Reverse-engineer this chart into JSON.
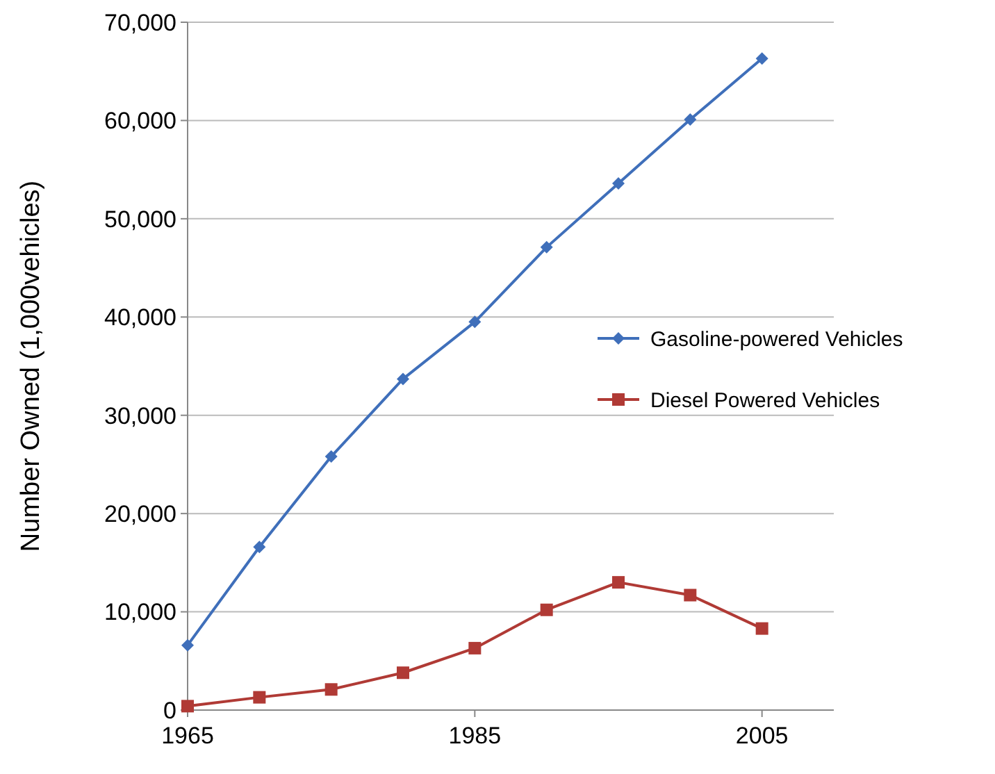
{
  "chart_data": {
    "type": "line",
    "ylabel": "Number Owned (1,000vehicles)",
    "x": [
      1965,
      1970,
      1975,
      1980,
      1985,
      1990,
      1995,
      2000,
      2005
    ],
    "xlim": [
      1965,
      2010
    ],
    "xticks": [
      1965,
      1985,
      2005
    ],
    "ylim": [
      0,
      70000
    ],
    "yticks": [
      {
        "value": 0,
        "label": "0"
      },
      {
        "value": 10000,
        "label": "10,000"
      },
      {
        "value": 20000,
        "label": "20,000"
      },
      {
        "value": 30000,
        "label": "30,000"
      },
      {
        "value": 40000,
        "label": "40,000"
      },
      {
        "value": 50000,
        "label": "50,000"
      },
      {
        "value": 60000,
        "label": "60,000"
      },
      {
        "value": 70000,
        "label": "70,000"
      }
    ],
    "grid": "y",
    "legend": "right",
    "series": [
      {
        "name": "Gasoline-powered Vehicles",
        "color": "#3f6fba",
        "marker": "diamond",
        "values": [
          6600,
          16600,
          25800,
          33700,
          39500,
          47100,
          53600,
          60100,
          66300
        ]
      },
      {
        "name": "Diesel Powered Vehicles",
        "color": "#b03a35",
        "marker": "square",
        "values": [
          400,
          1300,
          2100,
          3800,
          6300,
          10200,
          13000,
          11700,
          8300
        ]
      }
    ]
  }
}
